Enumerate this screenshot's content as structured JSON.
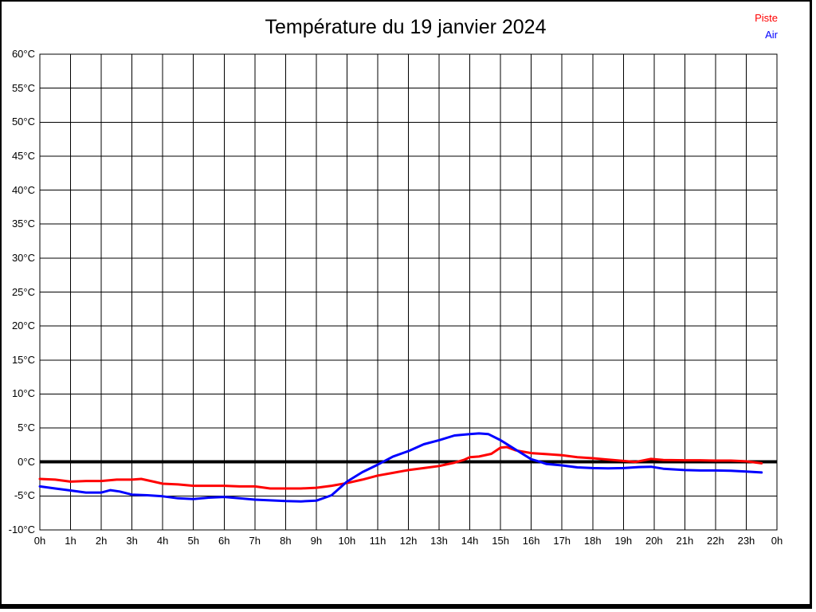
{
  "page": {
    "title": "Température du 19 janvier 2024"
  },
  "chart_data": {
    "type": "line",
    "title": "Température du 19 janvier 2024",
    "xlabel": "",
    "ylabel": "",
    "x_axis": {
      "unit": "h",
      "range": [
        0,
        24
      ],
      "tick_step_hours": 1,
      "tick_labels": [
        "0h",
        "1h",
        "2h",
        "3h",
        "4h",
        "5h",
        "6h",
        "7h",
        "8h",
        "9h",
        "10h",
        "11h",
        "12h",
        "13h",
        "14h",
        "15h",
        "16h",
        "17h",
        "18h",
        "19h",
        "20h",
        "21h",
        "22h",
        "23h",
        "0h"
      ],
      "grid": true
    },
    "y_axis": {
      "unit": "°C",
      "range": [
        -10,
        60
      ],
      "tick_values": [
        60,
        55,
        50,
        45,
        40,
        35,
        30,
        25,
        20,
        15,
        10,
        5,
        0,
        -5,
        -10
      ],
      "tick_labels": [
        "60°C",
        "55°C",
        "50°C",
        "45°C",
        "40°C",
        "35°C",
        "30°C",
        "25°C",
        "20°C",
        "15°C",
        "10°C",
        "5°C",
        "0°C",
        "-5°C",
        "-10°C"
      ],
      "grid": true
    },
    "zero_line": {
      "value": 0,
      "color": "#000000",
      "width": 4
    },
    "grid_color": "#000000",
    "frame_color": "#000000",
    "legend_position": "top-right",
    "series": [
      {
        "name": "Piste",
        "color": "#ff0000",
        "points": [
          [
            0,
            -2.5
          ],
          [
            0.5,
            -2.6
          ],
          [
            1,
            -2.9
          ],
          [
            1.5,
            -2.8
          ],
          [
            2,
            -2.8
          ],
          [
            2.5,
            -2.6
          ],
          [
            3,
            -2.6
          ],
          [
            3.3,
            -2.5
          ],
          [
            3.7,
            -2.9
          ],
          [
            4,
            -3.2
          ],
          [
            4.5,
            -3.3
          ],
          [
            5,
            -3.5
          ],
          [
            5.5,
            -3.5
          ],
          [
            6,
            -3.5
          ],
          [
            6.5,
            -3.6
          ],
          [
            7,
            -3.6
          ],
          [
            7.5,
            -3.9
          ],
          [
            8,
            -3.9
          ],
          [
            8.5,
            -3.9
          ],
          [
            9,
            -3.8
          ],
          [
            9.5,
            -3.5
          ],
          [
            10,
            -3.1
          ],
          [
            10.5,
            -2.6
          ],
          [
            11,
            -2.0
          ],
          [
            11.5,
            -1.6
          ],
          [
            12,
            -1.2
          ],
          [
            12.5,
            -0.9
          ],
          [
            13,
            -0.6
          ],
          [
            13.5,
            -0.1
          ],
          [
            13.8,
            0.3
          ],
          [
            14,
            0.7
          ],
          [
            14.3,
            0.8
          ],
          [
            14.7,
            1.2
          ],
          [
            15,
            2.1
          ],
          [
            15.2,
            2.2
          ],
          [
            15.5,
            1.7
          ],
          [
            16,
            1.3
          ],
          [
            16.5,
            1.15
          ],
          [
            17,
            1.0
          ],
          [
            17.5,
            0.7
          ],
          [
            18,
            0.55
          ],
          [
            18.5,
            0.35
          ],
          [
            19,
            0.15
          ],
          [
            19.4,
            0.0
          ],
          [
            19.9,
            0.45
          ],
          [
            20.3,
            0.3
          ],
          [
            21,
            0.25
          ],
          [
            21.5,
            0.25
          ],
          [
            22,
            0.2
          ],
          [
            22.5,
            0.2
          ],
          [
            23,
            0.1
          ],
          [
            23.5,
            -0.2
          ]
        ]
      },
      {
        "name": "Air",
        "color": "#0000ff",
        "points": [
          [
            0,
            -3.6
          ],
          [
            0.5,
            -3.9
          ],
          [
            1,
            -4.2
          ],
          [
            1.5,
            -4.5
          ],
          [
            2,
            -4.5
          ],
          [
            2.3,
            -4.15
          ],
          [
            2.6,
            -4.35
          ],
          [
            3,
            -4.8
          ],
          [
            3.5,
            -4.9
          ],
          [
            4,
            -5.05
          ],
          [
            4.5,
            -5.35
          ],
          [
            5,
            -5.45
          ],
          [
            5.5,
            -5.25
          ],
          [
            6,
            -5.15
          ],
          [
            6.5,
            -5.35
          ],
          [
            7,
            -5.55
          ],
          [
            7.5,
            -5.65
          ],
          [
            8,
            -5.75
          ],
          [
            8.5,
            -5.8
          ],
          [
            9,
            -5.7
          ],
          [
            9.5,
            -4.9
          ],
          [
            10,
            -2.9
          ],
          [
            10.5,
            -1.5
          ],
          [
            11,
            -0.4
          ],
          [
            11.5,
            0.8
          ],
          [
            12,
            1.6
          ],
          [
            12.5,
            2.6
          ],
          [
            13,
            3.2
          ],
          [
            13.5,
            3.9
          ],
          [
            14,
            4.1
          ],
          [
            14.3,
            4.2
          ],
          [
            14.6,
            4.1
          ],
          [
            15,
            3.2
          ],
          [
            15.5,
            1.8
          ],
          [
            16,
            0.4
          ],
          [
            16.3,
            0.0
          ],
          [
            16.5,
            -0.3
          ],
          [
            17,
            -0.5
          ],
          [
            17.5,
            -0.8
          ],
          [
            18,
            -0.9
          ],
          [
            18.5,
            -0.95
          ],
          [
            19,
            -0.9
          ],
          [
            19.5,
            -0.75
          ],
          [
            19.9,
            -0.7
          ],
          [
            20.3,
            -1.0
          ],
          [
            21,
            -1.2
          ],
          [
            21.5,
            -1.25
          ],
          [
            22,
            -1.25
          ],
          [
            22.5,
            -1.3
          ],
          [
            23,
            -1.4
          ],
          [
            23.5,
            -1.55
          ]
        ]
      }
    ]
  }
}
